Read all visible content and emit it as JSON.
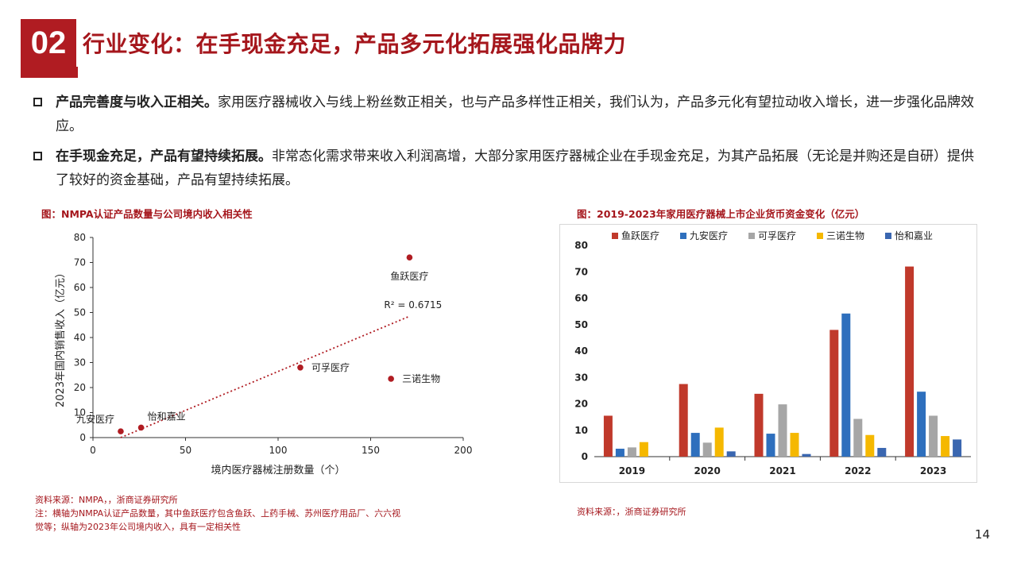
{
  "header": {
    "section_number": "02",
    "title": "行业变化：在手现金充足，产品多元化拓展强化品牌力"
  },
  "bullets": [
    {
      "lead": "产品完善度与收入正相关。",
      "text": "家用医疗器械收入与线上粉丝数正相关，也与产品多样性正相关，我们认为，产品多元化有望拉动收入增长，进一步强化品牌效应。"
    },
    {
      "lead": "在手现金充足，产品有望持续拓展。",
      "text": "非常态化需求带来收入利润高增，大部分家用医疗器械企业在手现金充足，为其产品拓展（无论是并购还是自研）提供了较好的资金基础，产品有望持续拓展。"
    }
  ],
  "left_figure": {
    "caption": "图：NMPA认证产品数量与公司境内收入相关性",
    "source": "资料来源：NMPA，，浙商证券研究所",
    "note_line1": "注：横轴为NMPA认证产品数量，其中鱼跃医疗包含鱼跃、上药手械、苏州医疗用品厂、六六视",
    "note_line2": "觉等；纵轴为2023年公司境内收入，具有一定相关性"
  },
  "right_figure": {
    "caption": "图：2019-2023年家用医疗器械上市企业货币资金变化（亿元）",
    "source": "资料来源：，浙商证券研究所"
  },
  "page_number": "14",
  "colors": {
    "brand_red": "#b01c22",
    "series": [
      "#c0392b",
      "#2e6fbd",
      "#a6a6a6",
      "#f5b800",
      "#3a66b0"
    ]
  },
  "chart_data": [
    {
      "type": "scatter",
      "xlabel": "境内医疗器械注册数量（个）",
      "ylabel": "2023年国内销售收入（亿元）",
      "xlim": [
        0,
        200
      ],
      "ylim": [
        0,
        80
      ],
      "xticks": [
        "0",
        "50",
        "100",
        "150",
        "200"
      ],
      "yticks": [
        "0",
        "10",
        "20",
        "30",
        "40",
        "50",
        "60",
        "70",
        "80"
      ],
      "points": [
        {
          "label": "九安医疗",
          "x": 15,
          "y": 2.5
        },
        {
          "label": "怡和嘉业",
          "x": 26,
          "y": 4
        },
        {
          "label": "可孚医疗",
          "x": 112,
          "y": 28
        },
        {
          "label": "三诺生物",
          "x": 161,
          "y": 23.5
        },
        {
          "label": "鱼跃医疗",
          "x": 171,
          "y": 72
        }
      ],
      "trendline": {
        "from": [
          15,
          0
        ],
        "to": [
          171,
          48.5
        ],
        "label": "R² = 0.6715"
      }
    },
    {
      "type": "bar",
      "categories": [
        "2019",
        "2020",
        "2021",
        "2022",
        "2023"
      ],
      "ylim": [
        0,
        80
      ],
      "yticks": [
        "0",
        "10",
        "20",
        "30",
        "40",
        "50",
        "60",
        "70",
        "80"
      ],
      "legend_position": "top",
      "series": [
        {
          "name": "鱼跃医疗",
          "values": [
            15.5,
            27.5,
            23.8,
            48,
            72
          ]
        },
        {
          "name": "九安医疗",
          "values": [
            3,
            9,
            8.7,
            54.2,
            24.6
          ]
        },
        {
          "name": "可孚医疗",
          "values": [
            3.5,
            5.3,
            19.8,
            14.3,
            15.5
          ]
        },
        {
          "name": "三诺生物",
          "values": [
            5.5,
            11,
            9,
            8.2,
            7.8
          ]
        },
        {
          "name": "怡和嘉业",
          "values": [
            0,
            2,
            1,
            3.3,
            6.5
          ]
        }
      ]
    }
  ]
}
